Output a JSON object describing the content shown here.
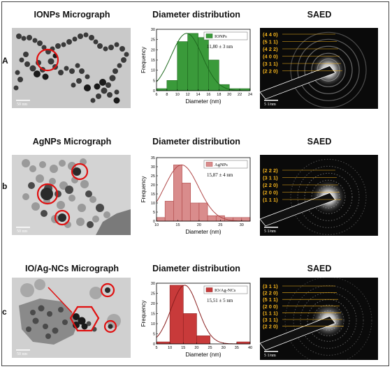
{
  "rows": [
    {
      "label": "A",
      "micrograph_title": "IONPs Micrograph",
      "dist_title": "Diameter distribution",
      "saed_title": "SAED",
      "scalebar": "50 nm",
      "saed_scalebar": "5 1/nm",
      "saed_labels": [
        "(4 4 0)",
        "(5 1 1)",
        "(4 2 2)",
        "(4 0 0)",
        "(3 1 1)",
        "(2 2 0)"
      ]
    },
    {
      "label": "b",
      "micrograph_title": "AgNPs Micrograph",
      "dist_title": "Diameter distribution",
      "saed_title": "SAED",
      "scalebar": "50 nm",
      "saed_scalebar": "5 1/nm",
      "saed_labels": [
        "(2 2 2)",
        "(3 1 1)",
        "(2 2 0)",
        "(2 0 0)",
        "(1 1 1)"
      ]
    },
    {
      "label": "c",
      "micrograph_title": "IO/Ag-NCs Micrograph",
      "dist_title": "Diameter distribution",
      "saed_title": "SAED",
      "scalebar": "50 nm",
      "saed_scalebar": "5 1/nm",
      "saed_labels": [
        "(3 1 1)",
        "(2 2 0)",
        "(5 1 1)",
        "(2 0 0)",
        "(1 1 1)",
        "(3 1 1)",
        "(2 2 0)"
      ]
    }
  ],
  "chart_data": [
    {
      "type": "bar",
      "legend": "IONPs",
      "stat": "11,80 ± 3 nm",
      "xlabel": "Diameter (nm)",
      "ylabel": "Frequency",
      "xlim": [
        6,
        24
      ],
      "ylim": [
        0,
        30
      ],
      "xticks": [
        "6",
        "8",
        "10",
        "12",
        "14",
        "16",
        "18",
        "20",
        "22",
        "24"
      ],
      "yticks": [
        "0",
        "5",
        "10",
        "15",
        "20",
        "25",
        "30"
      ],
      "bin_edges": [
        6,
        8,
        10,
        12,
        14,
        16,
        18,
        20,
        22,
        24
      ],
      "values": [
        1,
        5,
        24,
        28,
        26,
        15,
        3,
        1,
        1
      ],
      "color": "#3a9a3a",
      "edge": "#1f6a1f",
      "fit": {
        "mean": 11.8,
        "sd": 3,
        "peak": 28
      }
    },
    {
      "type": "bar",
      "legend": "AgNPs",
      "stat": "15,87 ± 4 nm",
      "xlabel": "Diameter (nm)",
      "ylabel": "Frequency",
      "xlim": [
        10,
        32
      ],
      "ylim": [
        0,
        35
      ],
      "xticks": [
        "10",
        "15",
        "20",
        "25",
        "30"
      ],
      "yticks": [
        "0",
        "5",
        "10",
        "15",
        "20",
        "25",
        "30",
        "35"
      ],
      "bin_edges": [
        10,
        12,
        14,
        16,
        18,
        20,
        22,
        24,
        26,
        28,
        30,
        32
      ],
      "values": [
        2,
        11,
        31,
        21,
        10,
        10,
        3,
        3,
        2,
        2,
        2
      ],
      "color": "#d98c8c",
      "edge": "#b04848",
      "fit": {
        "mean": 15.87,
        "sd": 4,
        "peak": 31
      }
    },
    {
      "type": "bar",
      "legend": "IO/Ag-NCs",
      "stat": "15,51 ± 5 nm",
      "xlabel": "Diameter (nm)",
      "ylabel": "Frequency",
      "xlim": [
        5,
        40
      ],
      "ylim": [
        0,
        30
      ],
      "xticks": [
        "5",
        "10",
        "15",
        "20",
        "25",
        "30",
        "35",
        "40"
      ],
      "yticks": [
        "0",
        "5",
        "10",
        "15",
        "20",
        "25",
        "30"
      ],
      "bin_edges": [
        5,
        10,
        15,
        20,
        25,
        30,
        35,
        40
      ],
      "values": [
        1,
        29,
        15,
        4,
        0,
        0,
        1
      ],
      "color": "#c83a3a",
      "edge": "#8a1f1f",
      "fit": {
        "mean": 15.51,
        "sd": 5,
        "peak": 29
      }
    }
  ]
}
